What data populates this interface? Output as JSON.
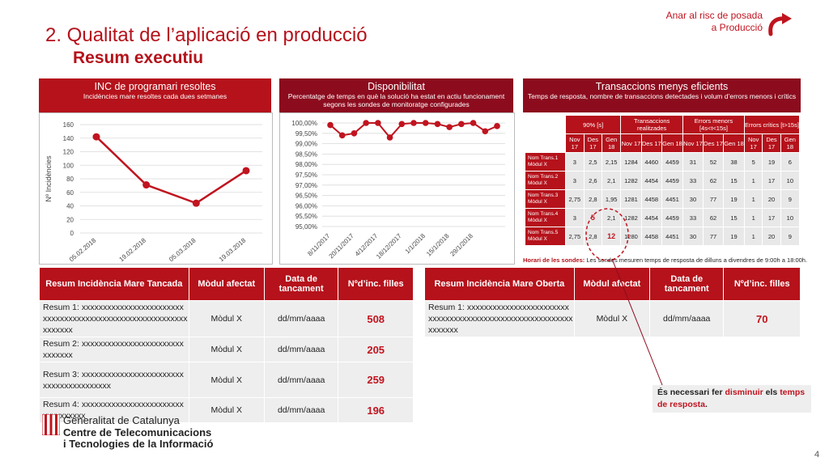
{
  "header": {
    "title": "2. Qualitat de l’aplicació en producció",
    "subtitle": "Resum executiu",
    "risk_link": "Anar al risc de posada a Producció"
  },
  "panels": {
    "inc": {
      "title": "INC de programari resoltes",
      "subtitle": "Incidències mare resoltes cada dues setmanes"
    },
    "disp": {
      "title": "Disponibilitat",
      "subtitle": "Percentatge de temps en què la solució ha estat en actiu funcionament segons les sondes de monitoratge configurades"
    },
    "tx": {
      "title": "Transaccions menys eficients",
      "subtitle": "Temps de resposta, nombre de transaccions detectades i volum d’errors menors i crítics"
    }
  },
  "chart_data": [
    {
      "type": "line",
      "x": [
        "05.02.2018",
        "19.02.2018",
        "05.03.2018",
        "19.03.2018"
      ],
      "values": [
        142,
        71,
        44,
        92
      ],
      "ylabel": "Nº Incidències",
      "ylim": [
        0,
        160
      ],
      "yticks": [
        "0",
        "20",
        "40",
        "60",
        "80",
        "100",
        "120",
        "140",
        "160"
      ],
      "color": "#c0141f",
      "grid": true
    },
    {
      "type": "line",
      "x": [
        "8/11/2017",
        "",
        "20/11/2017",
        "",
        "4/12/2017",
        "",
        "18/12/2017",
        "",
        "1/1/2018",
        "",
        "15/1/2018",
        "",
        "29/1/2018",
        "",
        ""
      ],
      "values": [
        99.9,
        99.4,
        99.5,
        100.0,
        100.0,
        99.3,
        99.95,
        100.0,
        100.0,
        99.95,
        99.8,
        99.95,
        100.0,
        99.6,
        99.85
      ],
      "ylim": [
        95.0,
        100.0
      ],
      "yticks": [
        "95,00%",
        "95,50%",
        "96,00%",
        "96,50%",
        "97,00%",
        "97,50%",
        "98,00%",
        "98,50%",
        "99,00%",
        "99,50%",
        "100,00%"
      ],
      "color": "#c0141f",
      "grid": true
    }
  ],
  "tx_table": {
    "groups": [
      "90% [s]",
      "Transaccions realitzades",
      "Errors menors [4s<t<15s]",
      "Errors crítics [t>15s]"
    ],
    "months": [
      "Nov 17",
      "Des 17",
      "Gen 18"
    ],
    "rows": [
      {
        "name": "Nom Trans.1 Mòdul X",
        "vals": [
          "3",
          "2,5",
          "2,15",
          "1284",
          "4460",
          "4459",
          "31",
          "52",
          "38",
          "5",
          "19",
          "6"
        ]
      },
      {
        "name": "Nom Trans.2 Mòdul X",
        "vals": [
          "3",
          "2,6",
          "2,1",
          "1282",
          "4454",
          "4459",
          "33",
          "62",
          "15",
          "1",
          "17",
          "10"
        ]
      },
      {
        "name": "Nom Trans.3 Mòdul X",
        "vals": [
          "2,75",
          "2,8",
          "1,95",
          "1281",
          "4458",
          "4451",
          "30",
          "77",
          "19",
          "1",
          "20",
          "9"
        ]
      },
      {
        "name": "Nom Trans.4 Mòdul X",
        "vals": [
          "3",
          "5",
          "2,1",
          "1282",
          "4454",
          "4459",
          "33",
          "62",
          "15",
          "1",
          "17",
          "10"
        ]
      },
      {
        "name": "Nom Trans.5 Mòdul X",
        "vals": [
          "2,75",
          "2,8",
          "12",
          "1280",
          "4458",
          "4451",
          "30",
          "77",
          "19",
          "1",
          "20",
          "9"
        ]
      }
    ],
    "note_label": "Horari de les sondes:",
    "note_text": " Les sondes mesuren temps de resposta de dilluns a divendres de 9:00h a 18:00h."
  },
  "closed_table": {
    "headers": [
      "Resum Incidència Mare Tancada",
      "Mòdul afectat",
      "Data de tancament",
      "Nºd’inc. filles"
    ],
    "rows": [
      {
        "desc": "Resum 1: xxxxxxxxxxxxxxxxxxxxxxxxxxxxxxxxxxxxxxxxxxxxxxxxxxxxxxxxxxxxxxxxx",
        "mod": "Mòdul X",
        "date": "dd/mm/aaaa",
        "num": "508"
      },
      {
        "desc": "Resum 2: xxxxxxxxxxxxxxxxxxxxxxxxxxxxxxx",
        "mod": "Mòdul X",
        "date": "dd/mm/aaaa",
        "num": "205"
      },
      {
        "desc": "Resum 3: xxxxxxxxxxxxxxxxxxxxxxxxxxxxxxxxxxxxxxxx",
        "mod": "Mòdul X",
        "date": "dd/mm/aaaa",
        "num": "259"
      },
      {
        "desc": "Resum 4: xxxxxxxxxxxxxxxxxxxxxxxxxxxxxxxxxx",
        "mod": "Mòdul X",
        "date": "dd/mm/aaaa",
        "num": "196"
      }
    ]
  },
  "open_table": {
    "headers": [
      "Resum Incidència Mare Oberta",
      "Mòdul afectat",
      "Data de tancament",
      "Nºd’inc. filles"
    ],
    "rows": [
      {
        "desc": "Resum 1: xxxxxxxxxxxxxxxxxxxxxxxxxxxxxxxxxxxxxxxxxxxxxxxxxxxxxxxxxxxxxxxxx",
        "mod": "Mòdul X",
        "date": "dd/mm/aaaa",
        "num": "70"
      }
    ]
  },
  "callout": {
    "pre": "És necessari fer ",
    "hl": "disminuir",
    "mid": " els ",
    "hl2": "temps de resposta",
    "post": "."
  },
  "footer": {
    "org1": "Generalitat de Catalunya",
    "org2": "Centre de Telecomunicacions",
    "org3": "i Tecnologies de la Informació",
    "page": "4"
  },
  "colors": {
    "brand": "#b5121b",
    "dark_brand": "#8c0c1e",
    "cell": "#e8e8e8"
  }
}
